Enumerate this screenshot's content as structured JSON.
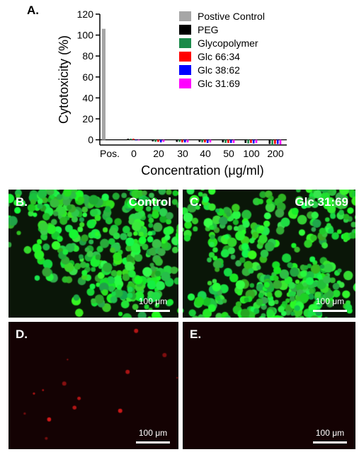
{
  "figure_label_a": "A.",
  "chart_data": {
    "type": "bar",
    "ylabel": "Cytotoxicity (%)",
    "xlabel": "Concentration (μg/ml)",
    "ylim": [
      -5,
      120
    ],
    "yticks": [
      0,
      20,
      40,
      60,
      80,
      100,
      120
    ],
    "categories": [
      "Pos.",
      "0",
      "20",
      "30",
      "40",
      "50",
      "100",
      "200"
    ],
    "legend_position": "top-right",
    "series": [
      {
        "name": "Postive Control",
        "color": "#a6a6a6",
        "values": [
          106,
          null,
          null,
          null,
          null,
          null,
          null,
          null
        ]
      },
      {
        "name": "PEG",
        "color": "#000000",
        "values": [
          null,
          1,
          -1.5,
          -2,
          -2,
          -2.5,
          -3,
          -4
        ]
      },
      {
        "name": "Glycopolymer",
        "color": "#1b8a4a",
        "values": [
          null,
          1,
          -2,
          -2,
          -2.5,
          -3,
          -3.5,
          -5
        ]
      },
      {
        "name": "Glc 66:34",
        "color": "#ff0000",
        "values": [
          null,
          1,
          -2,
          -2.5,
          -2.5,
          -3,
          -3,
          -4
        ]
      },
      {
        "name": "Glc 38:62",
        "color": "#0000ff",
        "values": [
          null,
          0,
          -2.5,
          -2.5,
          -3,
          -3,
          -3.5,
          -4
        ]
      },
      {
        "name": "Glc 31:69",
        "color": "#ff00ff",
        "values": [
          null,
          0,
          -2,
          -2.5,
          -2.5,
          -3,
          -3,
          -4.5
        ]
      }
    ]
  },
  "panels": {
    "b": {
      "letter": "B.",
      "title": "Control",
      "scalebar": "100 μm",
      "bg": "#0a1608",
      "cell_color": "#2ee05a",
      "channel": "green"
    },
    "c": {
      "letter": "C.",
      "title": "Glc 31:69",
      "scalebar": "100 μm",
      "bg": "#0a1608",
      "cell_color": "#2ee05a",
      "channel": "green"
    },
    "d": {
      "letter": "D.",
      "scalebar": "100 μm",
      "bg": "#140203",
      "cell_color": "#d41a1a",
      "channel": "red"
    },
    "e": {
      "letter": "E.",
      "scalebar": "100 μm",
      "bg": "#140203",
      "channel": "red"
    }
  }
}
